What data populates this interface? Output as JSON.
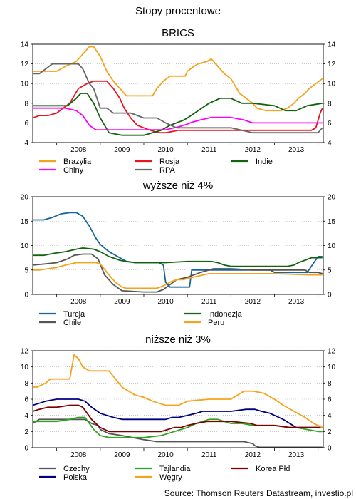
{
  "title": "Stopy procentowe",
  "source": "Source: Thomson Reuters Datastream, investio.pl",
  "chart_data": [
    {
      "type": "line",
      "title": "BRICS",
      "ylim": [
        4,
        14
      ],
      "yticks": [
        4,
        6,
        8,
        10,
        12,
        14
      ],
      "xlim": [
        2007.45,
        2014.12
      ],
      "xticks": [
        "2008",
        "2009",
        "2010",
        "2011",
        "2012",
        "2013"
      ],
      "legend_position": "bottom",
      "series": [
        {
          "name": "Brazylia",
          "color": "#f7a21b",
          "x": [
            2007.45,
            2007.75,
            2007.9,
            2008.0,
            2008.2,
            2008.45,
            2008.6,
            2008.75,
            2008.85,
            2009.0,
            2009.15,
            2009.3,
            2009.5,
            2009.6,
            2009.8,
            2009.95,
            2010.2,
            2010.3,
            2010.45,
            2010.6,
            2010.95,
            2011.0,
            2011.15,
            2011.25,
            2011.45,
            2011.55,
            2011.65,
            2011.75,
            2011.85,
            2012.0,
            2012.1,
            2012.2,
            2012.35,
            2012.5,
            2012.6,
            2012.8,
            2013.0,
            2013.15,
            2013.3,
            2013.45,
            2013.55,
            2013.7,
            2013.8,
            2013.95,
            2014.1
          ],
          "y": [
            11.25,
            11.25,
            11.25,
            11.25,
            11.75,
            12.25,
            13.0,
            13.75,
            13.75,
            12.75,
            11.25,
            10.25,
            9.25,
            8.75,
            8.75,
            8.75,
            8.75,
            9.5,
            10.25,
            10.75,
            10.75,
            11.25,
            11.75,
            12.0,
            12.25,
            12.5,
            12.0,
            11.5,
            11.0,
            10.5,
            9.75,
            9.0,
            8.5,
            8.0,
            7.5,
            7.25,
            7.25,
            7.25,
            7.5,
            8.0,
            8.5,
            9.0,
            9.5,
            10.0,
            10.5
          ]
        },
        {
          "name": "Rosja",
          "color": "#e8141e",
          "x": [
            2007.45,
            2007.6,
            2007.8,
            2008.0,
            2008.15,
            2008.3,
            2008.5,
            2008.7,
            2008.85,
            2009.0,
            2009.15,
            2009.3,
            2009.45,
            2009.55,
            2009.7,
            2009.85,
            2010.0,
            2010.15,
            2010.35,
            2010.5,
            2010.8,
            2011.0,
            2011.2,
            2011.5,
            2012.0,
            2012.5,
            2013.0,
            2013.5,
            2013.85,
            2013.95,
            2014.05,
            2014.1
          ],
          "y": [
            6.5,
            6.75,
            6.75,
            7.0,
            7.5,
            8.0,
            9.5,
            10.0,
            10.25,
            10.25,
            10.25,
            9.5,
            8.5,
            7.5,
            6.5,
            5.75,
            5.5,
            5.25,
            5.0,
            5.0,
            5.25,
            5.25,
            5.25,
            5.25,
            5.25,
            5.25,
            5.25,
            5.25,
            5.25,
            5.5,
            7.0,
            7.5
          ]
        },
        {
          "name": "Indie",
          "color": "#12630e",
          "x": [
            2007.45,
            2007.7,
            2008.0,
            2008.25,
            2008.45,
            2008.55,
            2008.7,
            2008.85,
            2009.0,
            2009.2,
            2009.5,
            2010.0,
            2010.2,
            2010.4,
            2010.6,
            2010.75,
            2010.9,
            2011.0,
            2011.25,
            2011.5,
            2011.75,
            2012.0,
            2012.25,
            2012.5,
            2013.0,
            2013.25,
            2013.5,
            2013.75,
            2014.1
          ],
          "y": [
            7.75,
            7.75,
            7.75,
            7.75,
            8.5,
            9.0,
            9.0,
            8.0,
            6.5,
            5.0,
            4.75,
            4.75,
            5.0,
            5.25,
            5.75,
            6.0,
            6.25,
            6.5,
            7.25,
            8.0,
            8.5,
            8.5,
            8.0,
            8.0,
            7.75,
            7.25,
            7.25,
            7.75,
            8.0
          ]
        },
        {
          "name": "Chiny",
          "color": "#ff00ff",
          "x": [
            2007.45,
            2007.6,
            2007.8,
            2008.0,
            2008.2,
            2008.45,
            2008.6,
            2008.75,
            2008.9,
            2009.0,
            2009.5,
            2010.0,
            2010.5,
            2010.8,
            2010.95,
            2011.1,
            2011.3,
            2011.55,
            2011.75,
            2012.0,
            2012.3,
            2012.5,
            2013.0,
            2013.5,
            2014.1
          ],
          "y": [
            7.5,
            7.5,
            7.5,
            7.5,
            7.5,
            7.25,
            6.75,
            5.75,
            5.3,
            5.3,
            5.3,
            5.3,
            5.3,
            5.6,
            5.8,
            6.06,
            6.3,
            6.56,
            6.56,
            6.56,
            6.3,
            6.0,
            6.0,
            6.0,
            6.0
          ]
        },
        {
          "name": "RPA",
          "color": "#666666",
          "x": [
            2007.45,
            2007.6,
            2007.75,
            2007.9,
            2008.0,
            2008.3,
            2008.5,
            2008.6,
            2008.75,
            2008.85,
            2009.0,
            2009.15,
            2009.3,
            2009.45,
            2009.7,
            2010.0,
            2010.2,
            2010.3,
            2010.5,
            2010.75,
            2010.9,
            2011.0,
            2011.5,
            2012.0,
            2012.5,
            2013.0,
            2013.5,
            2014.0,
            2014.1
          ],
          "y": [
            11.0,
            11.0,
            11.5,
            12.0,
            12.0,
            12.0,
            12.0,
            11.5,
            10.0,
            9.5,
            7.5,
            7.5,
            7.0,
            7.0,
            7.0,
            6.5,
            6.5,
            6.5,
            6.0,
            5.5,
            5.5,
            5.5,
            5.5,
            5.5,
            5.0,
            5.0,
            5.0,
            5.0,
            5.5
          ]
        }
      ]
    },
    {
      "type": "line",
      "title": "wyższe niż 4%",
      "ylim": [
        0,
        20
      ],
      "yticks": [
        0,
        5,
        10,
        15,
        20
      ],
      "xlim": [
        2007.45,
        2014.12
      ],
      "xticks": [
        "2008",
        "2009",
        "2010",
        "2011",
        "2012",
        "2013"
      ],
      "legend_position": "bottom",
      "series": [
        {
          "name": "Turcja",
          "color": "#17669a",
          "x": [
            2007.45,
            2007.7,
            2007.9,
            2008.1,
            2008.3,
            2008.45,
            2008.6,
            2008.75,
            2008.9,
            2009.0,
            2009.2,
            2009.4,
            2009.6,
            2009.8,
            2010.0,
            2010.2,
            2010.35,
            2010.45,
            2010.5,
            2010.6,
            2010.8,
            2011.05,
            2011.1,
            2011.3,
            2011.6,
            2012.0,
            2012.5,
            2012.9,
            2013.0,
            2013.3,
            2013.5,
            2013.75,
            2014.0,
            2014.1
          ],
          "y": [
            15.25,
            15.25,
            15.75,
            16.5,
            16.75,
            16.75,
            16.0,
            14.0,
            11.5,
            10.25,
            8.75,
            7.75,
            6.75,
            6.5,
            6.5,
            6.5,
            6.5,
            6.0,
            2.5,
            1.5,
            1.5,
            1.5,
            5.0,
            5.0,
            5.0,
            5.0,
            5.0,
            5.0,
            4.5,
            4.5,
            4.5,
            4.5,
            7.75,
            7.75
          ]
        },
        {
          "name": "Chile",
          "color": "#555555",
          "x": [
            2007.45,
            2007.75,
            2008.0,
            2008.25,
            2008.4,
            2008.6,
            2008.8,
            2008.95,
            2009.1,
            2009.3,
            2009.5,
            2010.0,
            2010.3,
            2010.45,
            2010.6,
            2010.75,
            2011.0,
            2011.3,
            2011.6,
            2012.0,
            2012.5,
            2013.0,
            2013.5,
            2013.7,
            2013.8,
            2014.0,
            2014.1
          ],
          "y": [
            6.0,
            6.25,
            6.5,
            7.25,
            8.0,
            8.25,
            8.25,
            7.25,
            4.0,
            2.0,
            0.75,
            0.5,
            0.5,
            1.0,
            2.0,
            3.0,
            3.5,
            4.5,
            5.25,
            5.25,
            5.0,
            5.0,
            5.0,
            5.0,
            4.5,
            4.5,
            4.25
          ]
        },
        {
          "name": "Indonezja",
          "color": "#12630e",
          "x": [
            2007.45,
            2007.7,
            2008.0,
            2008.2,
            2008.45,
            2008.6,
            2008.85,
            2009.0,
            2009.2,
            2009.45,
            2009.6,
            2009.8,
            2010.0,
            2010.5,
            2011.0,
            2011.3,
            2011.55,
            2011.7,
            2011.85,
            2012.0,
            2012.5,
            2013.0,
            2013.3,
            2013.45,
            2013.55,
            2013.7,
            2013.85,
            2014.1
          ],
          "y": [
            8.0,
            8.0,
            8.5,
            8.75,
            9.25,
            9.5,
            9.25,
            8.75,
            7.75,
            7.0,
            6.75,
            6.5,
            6.5,
            6.5,
            6.75,
            6.75,
            6.75,
            6.5,
            6.0,
            5.75,
            5.75,
            5.75,
            5.75,
            6.0,
            6.5,
            7.0,
            7.5,
            7.5
          ]
        },
        {
          "name": "Peru",
          "color": "#f7a21b",
          "x": [
            2007.45,
            2007.6,
            2007.8,
            2008.0,
            2008.2,
            2008.45,
            2008.6,
            2008.75,
            2008.9,
            2009.0,
            2009.2,
            2009.35,
            2009.5,
            2009.6,
            2010.0,
            2010.3,
            2010.45,
            2010.6,
            2010.75,
            2010.9,
            2011.0,
            2011.25,
            2011.5,
            2012.0,
            2012.5,
            2013.0,
            2013.8,
            2014.1
          ],
          "y": [
            5.0,
            5.0,
            5.25,
            5.5,
            6.0,
            6.5,
            6.5,
            6.5,
            6.5,
            6.25,
            4.0,
            2.5,
            1.5,
            1.25,
            1.25,
            1.25,
            1.75,
            2.5,
            3.0,
            3.0,
            3.25,
            3.75,
            4.25,
            4.25,
            4.25,
            4.25,
            4.0,
            4.0
          ]
        }
      ]
    },
    {
      "type": "line",
      "title": "niższe niż 3%",
      "ylim": [
        0,
        12
      ],
      "yticks": [
        0,
        2,
        4,
        6,
        8,
        10,
        12
      ],
      "xlim": [
        2007.45,
        2014.12
      ],
      "xticks": [
        "2008",
        "2009",
        "2010",
        "2011",
        "2012",
        "2013"
      ],
      "legend_position": "bottom",
      "series": [
        {
          "name": "Czechy",
          "color": "#555555",
          "x": [
            2007.45,
            2007.6,
            2007.8,
            2008.0,
            2008.3,
            2008.5,
            2008.65,
            2008.8,
            2008.95,
            2009.0,
            2009.2,
            2009.5,
            2010.0,
            2010.3,
            2010.5,
            2011.0,
            2011.5,
            2012.0,
            2012.3,
            2012.5,
            2012.55,
            2012.65,
            2012.75,
            2013.0,
            2013.5,
            2014.1
          ],
          "y": [
            3.0,
            3.5,
            3.5,
            3.5,
            3.5,
            3.5,
            3.5,
            3.0,
            2.75,
            2.25,
            1.75,
            1.5,
            1.0,
            0.75,
            0.75,
            0.75,
            0.75,
            0.75,
            0.75,
            0.5,
            0.25,
            0.05,
            0.05,
            0.05,
            0.05,
            0.05
          ]
        },
        {
          "name": "Polska",
          "color": "#00007f",
          "x": [
            2007.45,
            2007.6,
            2007.75,
            2008.0,
            2008.2,
            2008.35,
            2008.5,
            2008.65,
            2008.8,
            2009.0,
            2009.3,
            2009.5,
            2010.0,
            2010.5,
            2010.65,
            2010.8,
            2011.0,
            2011.2,
            2011.35,
            2011.5,
            2012.0,
            2012.35,
            2012.45,
            2012.55,
            2012.7,
            2012.9,
            2013.0,
            2013.2,
            2013.35,
            2013.5,
            2014.1
          ],
          "y": [
            5.25,
            5.5,
            5.75,
            6.0,
            6.0,
            6.0,
            6.0,
            5.75,
            5.0,
            4.25,
            3.75,
            3.5,
            3.5,
            3.5,
            3.75,
            3.75,
            4.0,
            4.25,
            4.5,
            4.5,
            4.5,
            4.75,
            4.75,
            4.75,
            4.5,
            4.25,
            4.0,
            3.5,
            3.0,
            2.5,
            2.5
          ]
        },
        {
          "name": "Tajlandia",
          "color": "#2ea31d",
          "x": [
            2007.45,
            2007.6,
            2007.8,
            2008.0,
            2008.3,
            2008.5,
            2008.65,
            2008.75,
            2008.85,
            2009.0,
            2009.2,
            2009.5,
            2010.0,
            2010.4,
            2010.55,
            2010.7,
            2010.85,
            2011.0,
            2011.2,
            2011.35,
            2011.5,
            2011.7,
            2011.85,
            2012.0,
            2012.25,
            2012.5,
            2013.0,
            2013.35,
            2013.5,
            2013.75,
            2014.0,
            2014.1
          ],
          "y": [
            3.25,
            3.25,
            3.25,
            3.25,
            3.5,
            3.75,
            3.75,
            3.0,
            2.25,
            1.5,
            1.25,
            1.25,
            1.25,
            1.5,
            1.75,
            2.0,
            2.25,
            2.5,
            3.0,
            3.25,
            3.5,
            3.5,
            3.25,
            3.0,
            3.0,
            2.75,
            2.75,
            2.5,
            2.5,
            2.25,
            2.0,
            2.0
          ]
        },
        {
          "name": "Korea Płd",
          "color": "#7f0000",
          "x": [
            2007.45,
            2007.6,
            2007.8,
            2008.0,
            2008.3,
            2008.5,
            2008.6,
            2008.7,
            2008.8,
            2008.9,
            2009.0,
            2009.2,
            2009.5,
            2010.0,
            2010.4,
            2010.55,
            2010.7,
            2010.85,
            2011.0,
            2011.2,
            2011.45,
            2011.6,
            2012.0,
            2012.45,
            2012.6,
            2012.8,
            2013.0,
            2013.35,
            2013.5,
            2014.1
          ],
          "y": [
            4.5,
            4.75,
            5.0,
            5.0,
            5.25,
            5.25,
            5.0,
            4.25,
            3.5,
            3.0,
            2.5,
            2.0,
            2.0,
            2.0,
            2.0,
            2.25,
            2.5,
            2.5,
            2.75,
            3.0,
            3.25,
            3.25,
            3.25,
            3.0,
            2.75,
            2.75,
            2.75,
            2.5,
            2.5,
            2.5
          ]
        },
        {
          "name": "Węgry",
          "color": "#f7a21b",
          "x": [
            2007.45,
            2007.55,
            2007.75,
            2007.85,
            2008.0,
            2008.2,
            2008.3,
            2008.4,
            2008.5,
            2008.6,
            2008.75,
            2008.9,
            2009.0,
            2009.2,
            2009.35,
            2009.5,
            2009.65,
            2009.8,
            2010.0,
            2010.2,
            2010.35,
            2010.5,
            2010.8,
            2011.0,
            2011.5,
            2011.9,
            2012.0,
            2012.3,
            2012.5,
            2012.75,
            2013.0,
            2013.2,
            2013.45,
            2013.7,
            2013.9,
            2014.1
          ],
          "y": [
            7.5,
            7.5,
            8.0,
            8.5,
            8.5,
            8.5,
            8.5,
            11.5,
            11.0,
            10.0,
            9.5,
            9.5,
            9.5,
            9.5,
            8.5,
            7.5,
            7.0,
            6.5,
            6.25,
            5.75,
            5.5,
            5.25,
            5.25,
            5.75,
            6.0,
            6.0,
            6.0,
            7.0,
            7.0,
            6.75,
            6.0,
            5.25,
            4.5,
            3.75,
            3.0,
            2.5
          ]
        }
      ]
    }
  ]
}
